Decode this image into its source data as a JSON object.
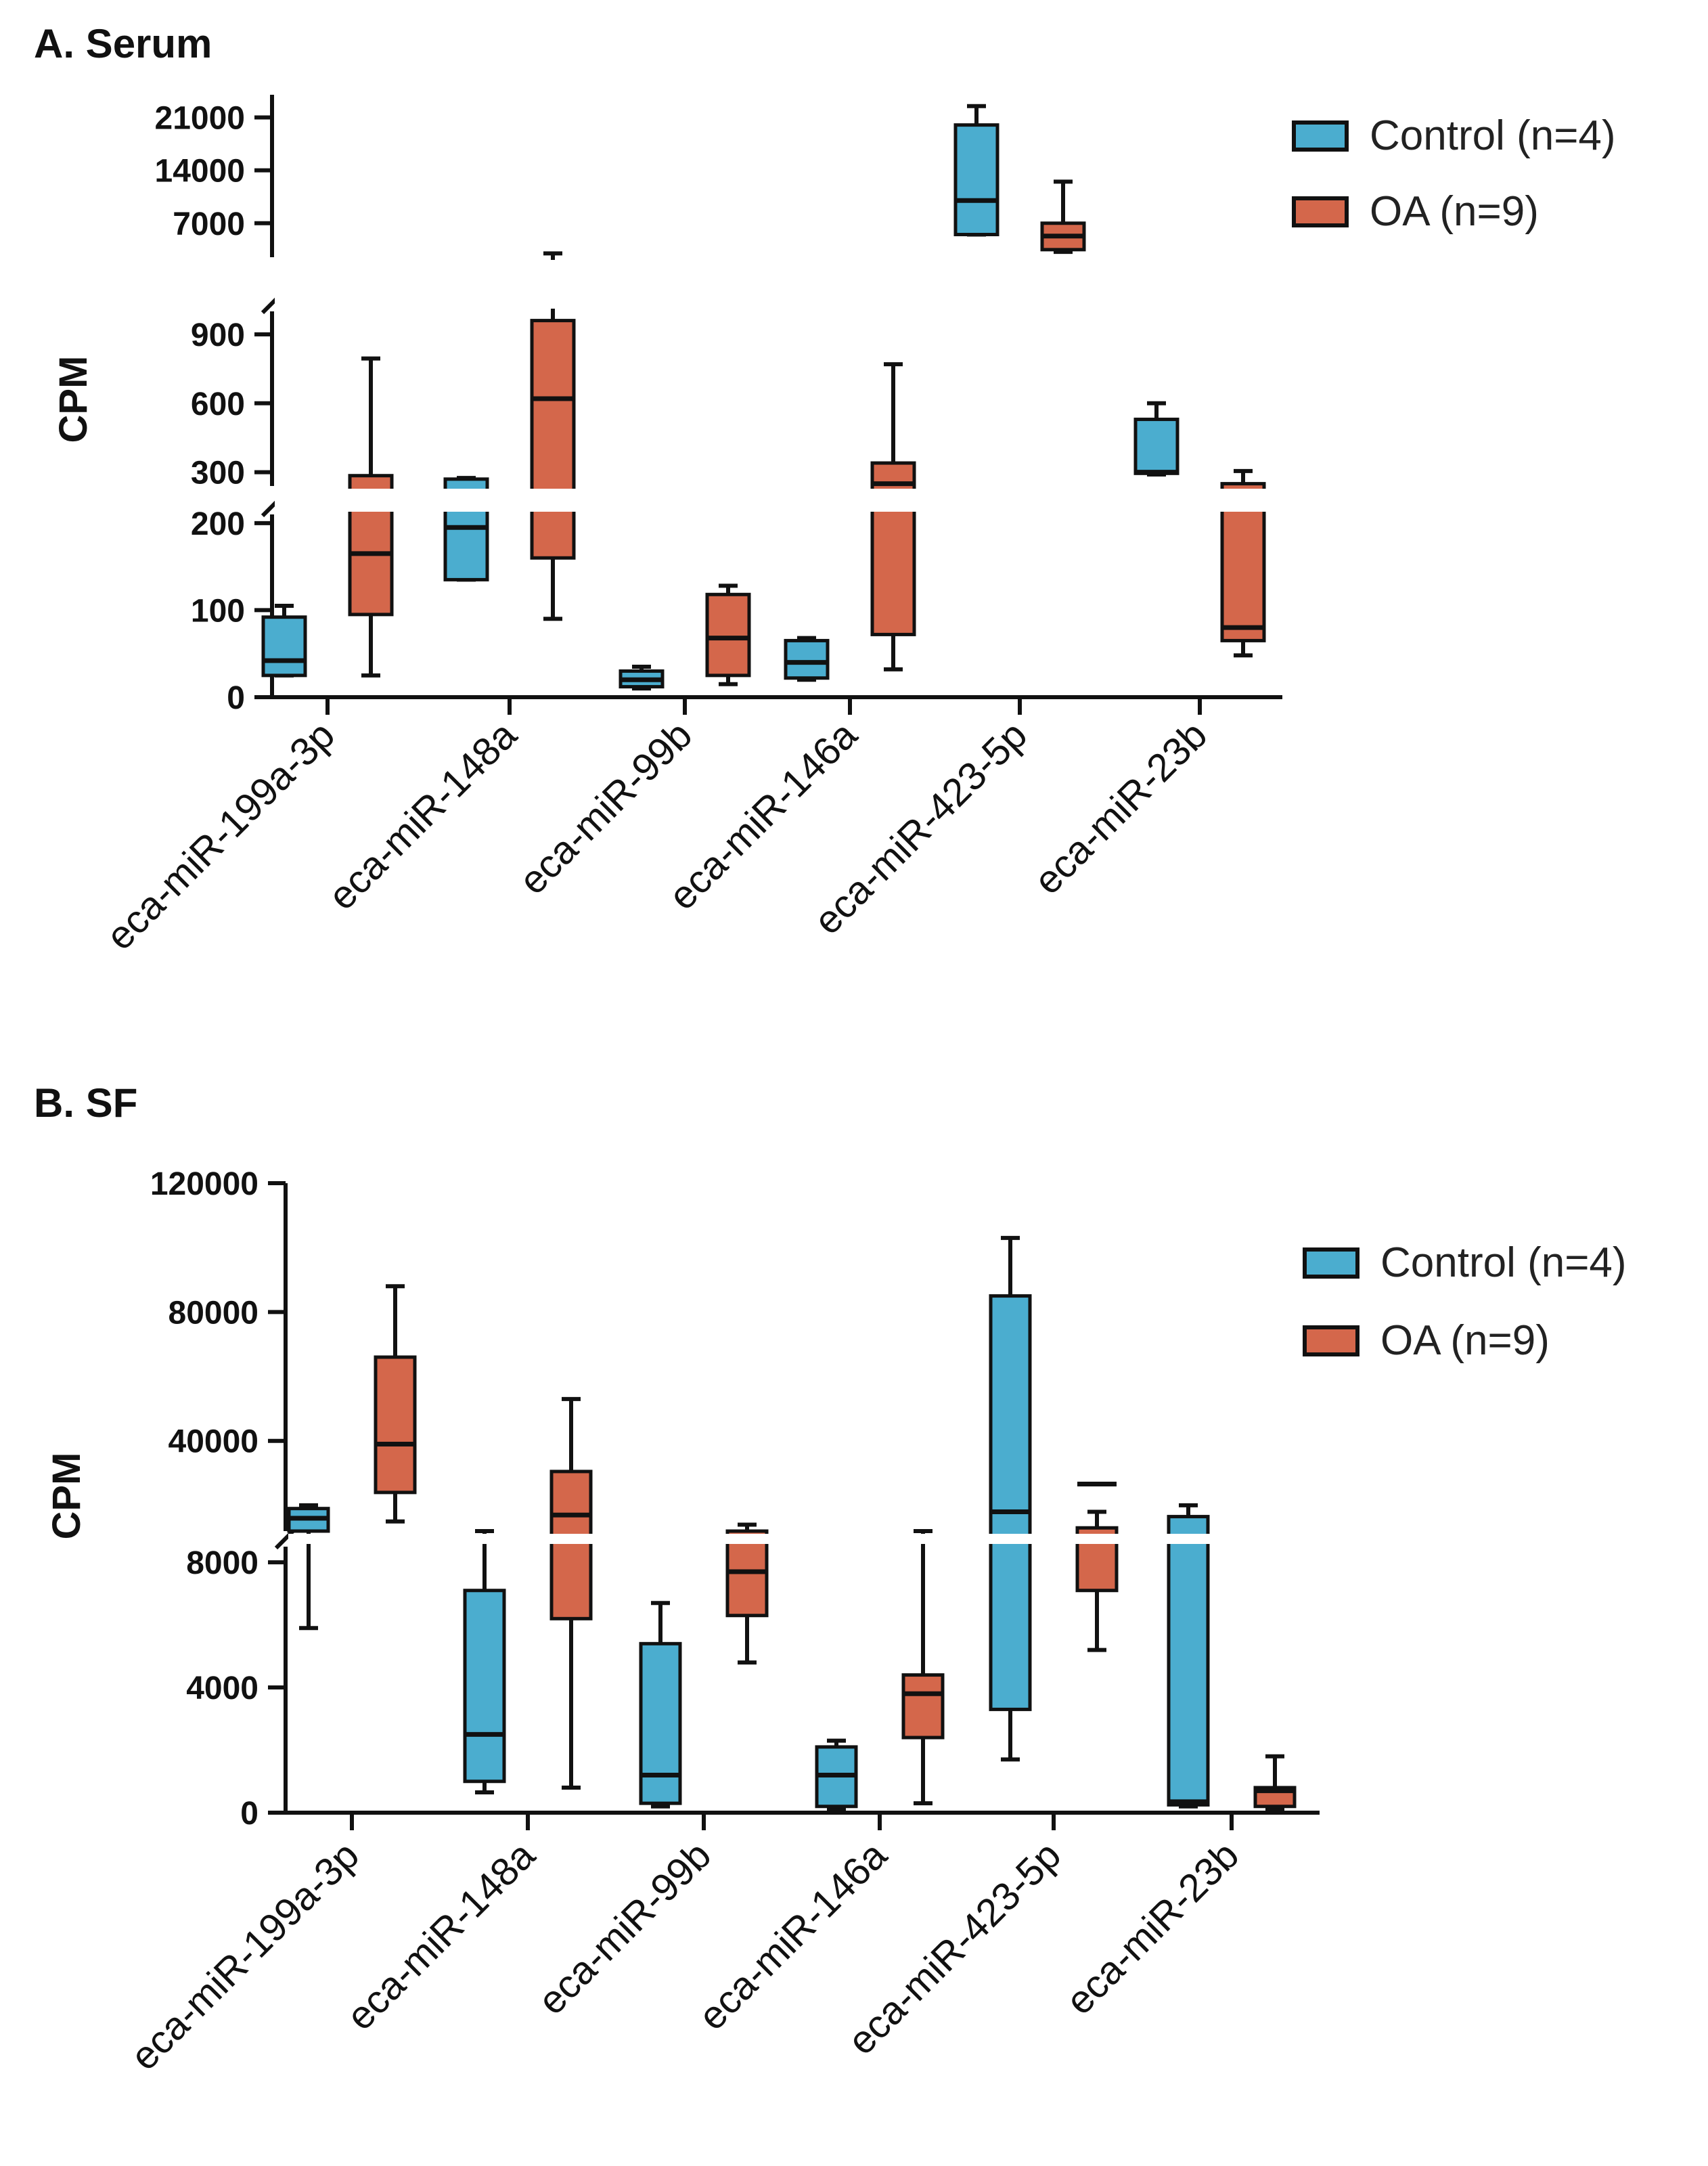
{
  "colors": {
    "control": "#4BADCF",
    "oa": "#D4674B",
    "ink": "#111111"
  },
  "chart_data": [
    {
      "type": "box",
      "title": "A. Serum",
      "ylabel": "CPM",
      "xlabel": "",
      "categories": [
        "eca-miR-199a-3p",
        "eca-miR-148a",
        "eca-miR-99b",
        "eca-miR-146a",
        "eca-miR-423-5p",
        "eca-miR-23b"
      ],
      "y_axis": {
        "broken": true,
        "segments": [
          {
            "range": [
              0,
              210
            ],
            "ticks": [
              0,
              100,
              200
            ]
          },
          {
            "range": [
              240,
              1000
            ],
            "ticks": [
              300,
              600,
              900
            ]
          },
          {
            "range": [
              2500,
              24000
            ],
            "ticks": [
              7000,
              14000,
              21000
            ]
          }
        ]
      },
      "legend": [
        {
          "name": "Control (n=4)",
          "color_key": "control"
        },
        {
          "name": "OA (n=9)",
          "color_key": "oa"
        }
      ],
      "series": [
        {
          "name": "Control (n=4)",
          "boxes": [
            {
              "min": 25,
              "q1": 25,
              "median": 42,
              "q3": 92,
              "max": 105
            },
            {
              "min": 135,
              "q1": 135,
              "median": 195,
              "q3": 270,
              "max": 275
            },
            {
              "min": 10,
              "q1": 12,
              "median": 20,
              "q3": 30,
              "max": 35
            },
            {
              "min": 20,
              "q1": 22,
              "median": 40,
              "q3": 65,
              "max": 68
            },
            {
              "min": 5500,
              "q1": 5500,
              "median": 10000,
              "q3": 20000,
              "max": 22500
            },
            {
              "min": 290,
              "q1": 295,
              "median": 300,
              "q3": 530,
              "max": 600
            }
          ]
        },
        {
          "name": "OA (n=9)",
          "boxes": [
            {
              "min": 25,
              "q1": 95,
              "median": 165,
              "q3": 285,
              "max": 795
            },
            {
              "min": 90,
              "q1": 160,
              "median": 620,
              "q3": 960,
              "max": 3000
            },
            {
              "min": 15,
              "q1": 25,
              "median": 68,
              "q3": 118,
              "max": 128
            },
            {
              "min": 32,
              "q1": 72,
              "median": 250,
              "q3": 340,
              "max": 770
            },
            {
              "min": 3200,
              "q1": 3500,
              "median": 5300,
              "q3": 7000,
              "max": 12500
            },
            {
              "min": 48,
              "q1": 65,
              "median": 80,
              "q3": 250,
              "max": 305
            }
          ]
        }
      ]
    },
    {
      "type": "box",
      "title": "B. SF",
      "ylabel": "CPM",
      "xlabel": "",
      "categories": [
        "eca-miR-199a-3p",
        "eca-miR-148a",
        "eca-miR-99b",
        "eca-miR-146a",
        "eca-miR-423-5p",
        "eca-miR-23b"
      ],
      "y_axis": {
        "broken": true,
        "segments": [
          {
            "range": [
              0,
              8500
            ],
            "ticks": [
              0,
              4000,
              8000
            ]
          },
          {
            "range": [
              12000,
              120000
            ],
            "ticks": [
              40000,
              80000,
              120000
            ]
          }
        ]
      },
      "legend": [
        {
          "name": "Control (n=4)",
          "color_key": "control"
        },
        {
          "name": "OA (n=9)",
          "color_key": "oa"
        }
      ],
      "series": [
        {
          "name": "Control (n=4)",
          "boxes": [
            {
              "min": 5900,
              "q1": 12000,
              "median": 16000,
              "q3": 19000,
              "max": 20000
            },
            {
              "min": 650,
              "q1": 1000,
              "median": 2500,
              "q3": 7100,
              "max": 12000
            },
            {
              "min": 200,
              "q1": 300,
              "median": 1200,
              "q3": 5400,
              "max": 6700
            },
            {
              "min": 100,
              "q1": 200,
              "median": 1200,
              "q3": 2100,
              "max": 2300
            },
            {
              "min": 1700,
              "q1": 3300,
              "median": 18000,
              "q3": 85000,
              "max": 103000
            },
            {
              "min": 200,
              "q1": 250,
              "median": 350,
              "q3": 16500,
              "max": 20000
            }
          ]
        },
        {
          "name": "OA (n=9)",
          "boxes": [
            {
              "min": 15000,
              "q1": 24000,
              "median": 39000,
              "q3": 66000,
              "max": 88000
            },
            {
              "min": 800,
              "q1": 6200,
              "median": 17000,
              "q3": 30500,
              "max": 53000
            },
            {
              "min": 4800,
              "q1": 6300,
              "median": 7700,
              "q3": 12000,
              "max": 14000
            },
            {
              "min": 300,
              "q1": 2400,
              "median": 3800,
              "q3": 4400,
              "max": 12000
            },
            {
              "min": 5200,
              "q1": 7100,
              "median": 10500,
              "q3": 13000,
              "max": 18000
            },
            {
              "min": 100,
              "q1": 200,
              "median": 700,
              "q3": 800,
              "max": 1800
            }
          ]
        }
      ]
    }
  ]
}
